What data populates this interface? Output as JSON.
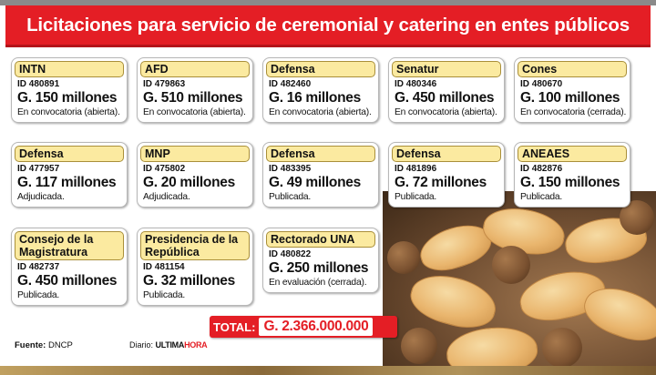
{
  "header": {
    "title": "Licitaciones para servicio de ceremonial y catering en entes públicos"
  },
  "cards": [
    {
      "entity": "INTN",
      "id": "ID 480891",
      "amount": "G. 150 millones",
      "status": "En convocatoria (abierta)."
    },
    {
      "entity": "AFD",
      "id": "ID 479863",
      "amount": "G. 510 millones",
      "status": "En convocatoria (abierta)."
    },
    {
      "entity": "Defensa",
      "id": "ID 482460",
      "amount": "G. 16 millones",
      "status": "En convocatoria (abierta)."
    },
    {
      "entity": "Senatur",
      "id": "ID 480346",
      "amount": "G. 450 millones",
      "status": "En convocatoria (abierta)."
    },
    {
      "entity": "Cones",
      "id": "ID 480670",
      "amount": "G. 100 millones",
      "status": "En convocatoria (cerrada)."
    },
    {
      "entity": "Defensa",
      "id": "ID 477957",
      "amount": "G. 117 millones",
      "status": "Adjudicada."
    },
    {
      "entity": "MNP",
      "id": "ID 475802",
      "amount": "G. 20 millones",
      "status": "Adjudicada."
    },
    {
      "entity": "Defensa",
      "id": "ID 483395",
      "amount": "G. 49 millones",
      "status": "Publicada."
    },
    {
      "entity": "Defensa",
      "id": "ID 481896",
      "amount": "G. 72 millones",
      "status": "Publicada."
    },
    {
      "entity": "ANEAES",
      "id": "ID 482876",
      "amount": "G. 150 millones",
      "status": "Publicada."
    },
    {
      "entity_line1": "Consejo de la",
      "entity_line2": "Magistratura",
      "id": "ID 482737",
      "amount": "G. 450 millones",
      "status": "Publicada."
    },
    {
      "entity_line1": "Presidencia de la",
      "entity_line2": "República",
      "id": "ID 481154",
      "amount": "G. 32 millones",
      "status": "Publicada."
    },
    {
      "entity": "Rectorado UNA",
      "id": "ID 480822",
      "amount": "G. 250 millones",
      "status": "En evaluación (cerrada)."
    }
  ],
  "total": {
    "label": "TOTAL:",
    "value": "G. 2.366.000.000"
  },
  "footer": {
    "source_label": "Fuente:",
    "source_value": "DNCP",
    "diario_label": "Diario:",
    "logo_part1": "ULTIMA",
    "logo_part2": "HORA"
  },
  "colors": {
    "brand_red": "#e41e25",
    "label_yellow": "#fbeaa0"
  },
  "decoration": {
    "photo": "empanadas-and-croquettes"
  }
}
